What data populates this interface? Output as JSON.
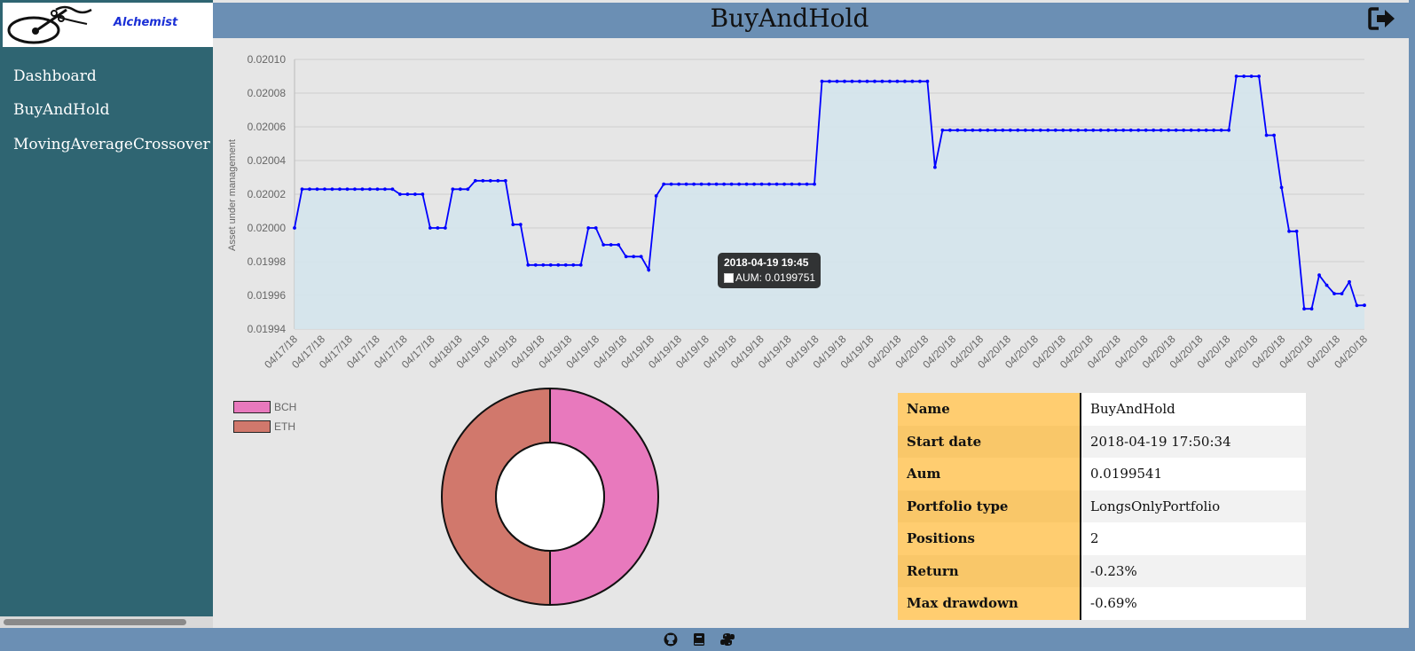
{
  "app": {
    "logo_text": "Alchemist",
    "title": "BuyAndHold"
  },
  "sidebar": {
    "items": [
      {
        "label": "Dashboard"
      },
      {
        "label": "BuyAndHold"
      },
      {
        "label": "MovingAverageCrossover"
      }
    ]
  },
  "header": {
    "logout_icon": "sign-out-icon"
  },
  "footer": {
    "icons": [
      "github-icon",
      "book-icon",
      "python-icon"
    ]
  },
  "chart_data": [
    {
      "type": "area",
      "title": "",
      "xlabel": "",
      "ylabel": "Asset under management",
      "ylim": [
        0.01994,
        0.0201
      ],
      "yticks": [
        "0.01994",
        "0.01996",
        "0.01998",
        "0.02000",
        "0.02002",
        "0.02004",
        "0.02006",
        "0.02008",
        "0.02010"
      ],
      "grid": true,
      "line_color": "#0000ff",
      "fill_color": "#d4e4ec",
      "x_tick_labels": [
        "04/17/18",
        "04/17/18",
        "04/17/18",
        "04/17/18",
        "04/17/18",
        "04/17/18",
        "04/18/18",
        "04/19/18",
        "04/19/18",
        "04/19/18",
        "04/19/18",
        "04/19/18",
        "04/19/18",
        "04/19/18",
        "04/19/18",
        "04/19/18",
        "04/19/18",
        "04/19/18",
        "04/19/18",
        "04/19/18",
        "04/19/18",
        "04/19/18",
        "04/20/18",
        "04/20/18",
        "04/20/18",
        "04/20/18",
        "04/20/18",
        "04/20/18",
        "04/20/18",
        "04/20/18",
        "04/20/18",
        "04/20/18",
        "04/20/18",
        "04/20/18",
        "04/20/18",
        "04/20/18",
        "04/20/18",
        "04/20/18",
        "04/20/18",
        "04/20/18"
      ],
      "series": [
        {
          "name": "AUM",
          "values": [
            0.02,
            0.020023,
            0.020023,
            0.020023,
            0.020023,
            0.020023,
            0.020023,
            0.020023,
            0.020023,
            0.020023,
            0.020023,
            0.020023,
            0.020023,
            0.020023,
            0.02002,
            0.02002,
            0.02002,
            0.02002,
            0.02,
            0.02,
            0.02,
            0.020023,
            0.020023,
            0.020023,
            0.020028,
            0.020028,
            0.020028,
            0.020028,
            0.020028,
            0.020002,
            0.020002,
            0.019978,
            0.019978,
            0.019978,
            0.019978,
            0.019978,
            0.019978,
            0.019978,
            0.019978,
            0.02,
            0.02,
            0.01999,
            0.01999,
            0.01999,
            0.019983,
            0.019983,
            0.019983,
            0.0199751,
            0.020019,
            0.020026,
            0.020026,
            0.020026,
            0.020026,
            0.020026,
            0.020026,
            0.020026,
            0.020026,
            0.020026,
            0.020026,
            0.020026,
            0.020026,
            0.020026,
            0.020026,
            0.020026,
            0.020026,
            0.020026,
            0.020026,
            0.020026,
            0.020026,
            0.020026,
            0.020087,
            0.020087,
            0.020087,
            0.020087,
            0.020087,
            0.020087,
            0.020087,
            0.020087,
            0.020087,
            0.020087,
            0.020087,
            0.020087,
            0.020087,
            0.020087,
            0.020087,
            0.020036,
            0.020058,
            0.020058,
            0.020058,
            0.020058,
            0.020058,
            0.020058,
            0.020058,
            0.020058,
            0.020058,
            0.020058,
            0.020058,
            0.020058,
            0.020058,
            0.020058,
            0.020058,
            0.020058,
            0.020058,
            0.020058,
            0.020058,
            0.020058,
            0.020058,
            0.020058,
            0.020058,
            0.020058,
            0.020058,
            0.020058,
            0.020058,
            0.020058,
            0.020058,
            0.020058,
            0.020058,
            0.020058,
            0.020058,
            0.020058,
            0.020058,
            0.020058,
            0.020058,
            0.020058,
            0.020058,
            0.02009,
            0.02009,
            0.02009,
            0.02009,
            0.020055,
            0.020055,
            0.020024,
            0.019998,
            0.019998,
            0.019952,
            0.019952,
            0.019972,
            0.019966,
            0.019961,
            0.019961,
            0.019968,
            0.019954,
            0.0199541
          ]
        }
      ],
      "tooltip": {
        "title": "2018-04-19 19:45",
        "label": "AUM: 0.0199751",
        "index": 47
      }
    },
    {
      "type": "pie",
      "donut": true,
      "legend_position": "top-left",
      "categories": [
        "BCH",
        "ETH"
      ],
      "values": [
        50,
        50
      ],
      "colors": [
        "#e879bd",
        "#d1786c"
      ]
    }
  ],
  "info_table": [
    {
      "key": "Name",
      "value": "BuyAndHold"
    },
    {
      "key": "Start date",
      "value": "2018-04-19 17:50:34"
    },
    {
      "key": "Aum",
      "value": "0.0199541"
    },
    {
      "key": "Portfolio type",
      "value": "LongsOnlyPortfolio"
    },
    {
      "key": "Positions",
      "value": "2"
    },
    {
      "key": "Return",
      "value": "-0.23%"
    },
    {
      "key": "Max drawdown",
      "value": "-0.69%"
    }
  ]
}
